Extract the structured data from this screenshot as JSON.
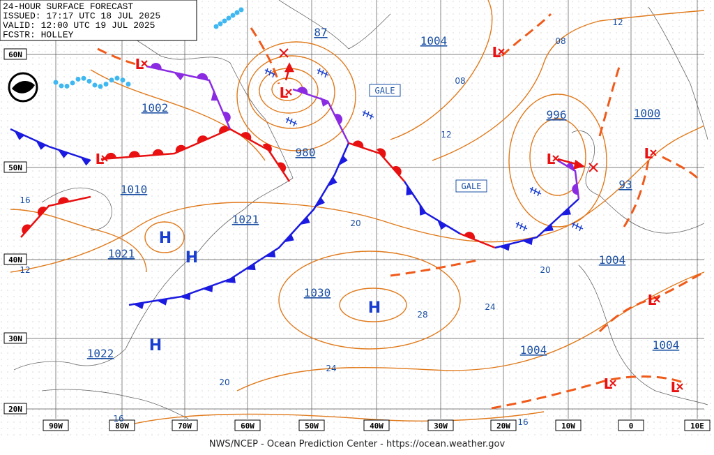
{
  "header": {
    "lines": [
      "24-HOUR SURFACE FORECAST",
      "ISSUED: 17:17 UTC 18 JUL 2025",
      "VALID:  12:00 UTC 19 JUL 2025",
      "FCSTR:  HOLLEY"
    ]
  },
  "lat_labels": [
    "60N",
    "50N",
    "40N",
    "30N",
    "20N"
  ],
  "lon_labels": [
    "90W",
    "80W",
    "70W",
    "60W",
    "50W",
    "40W",
    "30W",
    "20W",
    "10W",
    "0",
    "10E"
  ],
  "pressure_labels": [
    "87",
    "1004",
    "1002",
    "980",
    "996",
    "1000",
    "1010",
    "1021",
    "1021",
    "93",
    "1004",
    "1030",
    "1022",
    "1004",
    "1004"
  ],
  "isobar_labels": [
    "12",
    "08",
    "08",
    "12",
    "16",
    "12",
    "20",
    "20",
    "24",
    "28",
    "24",
    "20",
    "16",
    "16"
  ],
  "high_labels": [
    "H",
    "H",
    "H",
    "H"
  ],
  "low_labels": [
    "L",
    "L",
    "L",
    "L",
    "L",
    "L",
    "L",
    "L",
    "L"
  ],
  "gale_labels": [
    "GALE",
    "GALE"
  ],
  "footer": "NWS/NCEP - Ocean Prediction Center - https://ocean.weather.gov"
}
